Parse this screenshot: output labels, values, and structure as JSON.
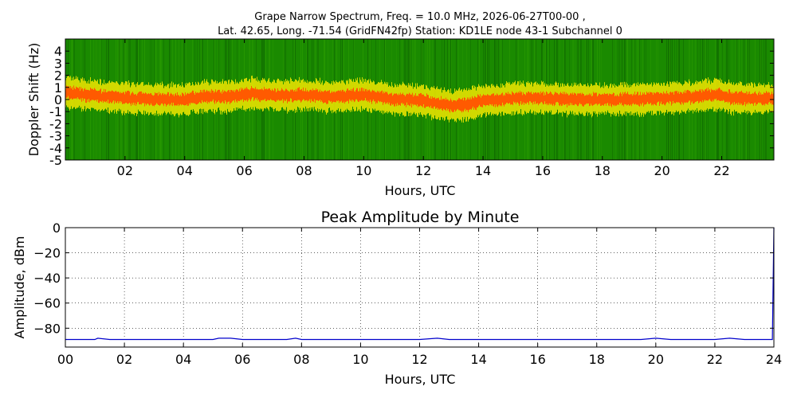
{
  "figure": {
    "title_line1": "Grape Narrow Spectrum, Freq. = 10.0 MHz, 2026-06-27T00-00 ,",
    "title_line2": "Lat.  42.65, Long. -71.54 (GridFN42fp) Station: KD1LE node 43-1 Subchannel 0"
  },
  "colors": {
    "background_green": "#1a8a00",
    "band_yellow": "#f2e600",
    "band_orange": "#ff5a00",
    "line_blue": "#0000cc"
  },
  "chart_data": [
    {
      "type": "heatmap",
      "xlabel": "Hours, UTC",
      "ylabel": "Doppler Shift (Hz)",
      "xlim": [
        0,
        23.75
      ],
      "ylim": [
        -5,
        5
      ],
      "x_ticks": [
        "02",
        "04",
        "06",
        "08",
        "10",
        "12",
        "14",
        "16",
        "18",
        "20",
        "22"
      ],
      "x_tick_values": [
        2,
        4,
        6,
        8,
        10,
        12,
        14,
        16,
        18,
        20,
        22
      ],
      "y_ticks": [
        "4",
        "3",
        "2",
        "1",
        "0",
        "-1",
        "-2",
        "-3",
        "-4",
        "-5"
      ],
      "y_tick_values": [
        4,
        3,
        2,
        1,
        0,
        -1,
        -2,
        -3,
        -4,
        -5
      ],
      "peak_trace": {
        "hours": [
          0,
          1,
          2,
          3,
          4,
          4.7,
          5.5,
          6.2,
          7,
          8,
          9,
          10,
          10.5,
          11,
          11.5,
          12,
          12.5,
          13,
          13.5,
          14,
          15,
          16,
          17,
          18,
          19,
          20,
          21,
          21.8,
          22.5,
          23.75
        ],
        "doppler_hz": [
          0.6,
          0.3,
          0.1,
          0.0,
          0.0,
          0.3,
          0.2,
          0.5,
          0.3,
          0.4,
          0.2,
          0.4,
          0.2,
          0.0,
          0.0,
          -0.1,
          -0.3,
          -0.5,
          -0.4,
          -0.1,
          0.1,
          0.1,
          0.0,
          0.0,
          0.0,
          0.1,
          0.2,
          0.4,
          0.1,
          0.1
        ]
      },
      "colorscale": "green-yellow-orange",
      "grid": false
    },
    {
      "type": "line",
      "title": "Peak Amplitude by Minute",
      "xlabel": "Hours, UTC",
      "ylabel": "Amplitude, dBm",
      "xlim": [
        0,
        24
      ],
      "ylim": [
        -95,
        0
      ],
      "x_ticks": [
        "00",
        "02",
        "04",
        "06",
        "08",
        "10",
        "12",
        "14",
        "16",
        "18",
        "20",
        "22",
        "24"
      ],
      "x_tick_values": [
        0,
        2,
        4,
        6,
        8,
        10,
        12,
        14,
        16,
        18,
        20,
        22,
        24
      ],
      "y_ticks": [
        "0",
        "−20",
        "−40",
        "−60",
        "−80"
      ],
      "y_tick_values": [
        0,
        -20,
        -40,
        -60,
        -80
      ],
      "grid": true,
      "series": [
        {
          "x": [
            0,
            0.5,
            1,
            1.1,
            1.5,
            2,
            2.5,
            3,
            3.5,
            4,
            4.5,
            5,
            5.2,
            5.6,
            6,
            6.5,
            7,
            7.5,
            7.8,
            8,
            8.5,
            9,
            9.5,
            10,
            10.5,
            11,
            11.5,
            12,
            12.6,
            13,
            13.5,
            14,
            14.5,
            15,
            15.5,
            16,
            16.5,
            17,
            17.5,
            18,
            18.5,
            19,
            19.5,
            20,
            20.5,
            21,
            21.5,
            22,
            22.5,
            23,
            23.5,
            23.9,
            23.95,
            24
          ],
          "y": [
            -89,
            -89,
            -89,
            -88,
            -89,
            -89,
            -89,
            -89,
            -89,
            -89,
            -89,
            -89,
            -88,
            -88,
            -89,
            -89,
            -89,
            -89,
            -88,
            -89,
            -89,
            -89,
            -89,
            -89,
            -89,
            -89,
            -89,
            -89,
            -88,
            -89,
            -89,
            -89,
            -89,
            -89,
            -89,
            -89,
            -89,
            -89,
            -89,
            -89,
            -89,
            -89,
            -89,
            -88,
            -89,
            -89,
            -89,
            -89,
            -88,
            -89,
            -89,
            -89,
            -89,
            0
          ]
        }
      ]
    }
  ]
}
